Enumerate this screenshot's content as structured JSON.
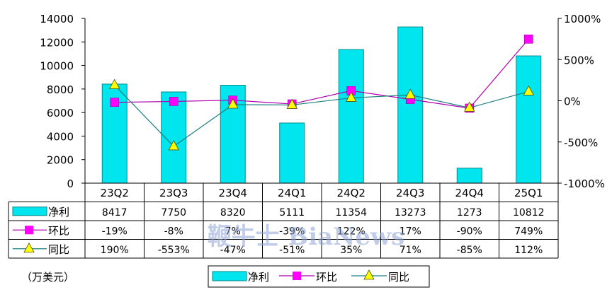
{
  "chart_data": {
    "type": "bar",
    "categories": [
      "23Q2",
      "23Q3",
      "23Q4",
      "24Q1",
      "24Q2",
      "24Q3",
      "24Q4",
      "25Q1"
    ],
    "series": [
      {
        "name": "净利",
        "kind": "bar",
        "axis": "left",
        "values": [
          8417,
          7750,
          8320,
          5111,
          11354,
          13273,
          1273,
          10812
        ],
        "labels": [
          "8417",
          "7750",
          "8320",
          "5111",
          "11354",
          "13273",
          "1273",
          "10812"
        ]
      },
      {
        "name": "环比",
        "kind": "line",
        "marker": "square",
        "axis": "right",
        "values": [
          -19,
          -8,
          7,
          -39,
          122,
          17,
          -90,
          749
        ],
        "labels": [
          "-19%",
          "-8%",
          "7%",
          "-39%",
          "122%",
          "17%",
          "-90%",
          "749%"
        ]
      },
      {
        "name": "同比",
        "kind": "line",
        "marker": "triangle",
        "axis": "right",
        "values": [
          190,
          -553,
          -47,
          -51,
          35,
          71,
          -85,
          112
        ],
        "labels": [
          "190%",
          "-553%",
          "-47%",
          "-51%",
          "35%",
          "71%",
          "-85%",
          "112%"
        ]
      }
    ],
    "ylim": [
      0,
      14000
    ],
    "yticks": [
      "14000",
      "12000",
      "10000",
      "8000",
      "6000",
      "4000",
      "2000",
      "0"
    ],
    "y2lim": [
      -1000,
      1000
    ],
    "y2ticks": [
      "1000%",
      "500%",
      "0%",
      "-500%",
      "-1000%"
    ],
    "unit": "（万美元）",
    "legend_position": "bottom",
    "data_table": true,
    "grid": false
  },
  "watermark": "鞭牛士 BiaNews",
  "colors": {
    "bar": "#00e5ee",
    "bar_border": "#008b8b",
    "qoq": "#ff00ff",
    "yoy": "#ffff00",
    "yoy_line": "#1b7f7f",
    "qoq_line": "#b000b0",
    "axis": "#000000"
  }
}
